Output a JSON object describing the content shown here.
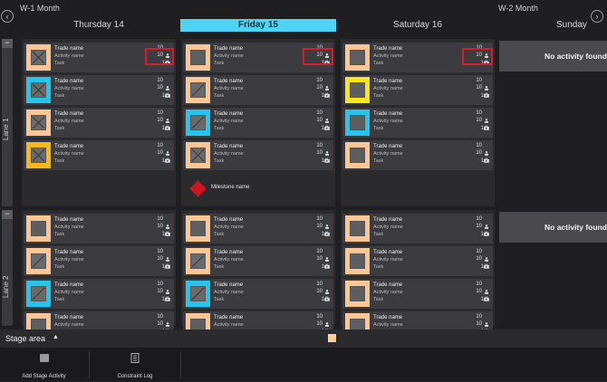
{
  "header": {
    "week_left": "W-1  Month",
    "week_right": "W-2  Month",
    "days": [
      {
        "label": "Thursday  14",
        "active": false
      },
      {
        "label": "Friday  15",
        "active": true
      },
      {
        "label": "Saturday  16",
        "active": false
      },
      {
        "label": "Sunday",
        "active": false
      }
    ]
  },
  "lanes": [
    {
      "label": "Lane 1",
      "collapse": "−"
    },
    {
      "label": "Lane 2",
      "collapse": "−"
    }
  ],
  "card_text": {
    "trade": "Trade name",
    "activity": "Activity name",
    "task": "Task",
    "people": "10",
    "camera": "10",
    "ratio": "1/1"
  },
  "colors": {
    "peach": "#fdc694",
    "cyan": "#25c6ee",
    "yellow": "#f8e51b",
    "amber": "#f6b81a",
    "highlight": "#d61d2d",
    "milestone": "#d0151f"
  },
  "lane1": {
    "thursday": [
      {
        "color": "peach",
        "icon": "x"
      },
      {
        "color": "cyan",
        "icon": "x"
      },
      {
        "color": "peach",
        "icon": "x"
      },
      {
        "color": "amber",
        "icon": "x"
      }
    ],
    "friday": [
      {
        "color": "peach",
        "icon": "square"
      },
      {
        "color": "peach",
        "icon": "slash"
      },
      {
        "color": "cyan",
        "icon": "slash"
      },
      {
        "color": "peach",
        "icon": "x"
      }
    ],
    "saturday": [
      {
        "color": "peach",
        "icon": "square"
      },
      {
        "color": "yellow",
        "icon": "square"
      },
      {
        "color": "cyan",
        "icon": "square"
      },
      {
        "color": "peach",
        "icon": "square"
      }
    ]
  },
  "lane2": {
    "thursday": [
      {
        "color": "peach",
        "icon": "square"
      },
      {
        "color": "peach",
        "icon": "slash"
      },
      {
        "color": "cyan",
        "icon": "slash"
      },
      {
        "color": "peach",
        "icon": "square"
      }
    ],
    "friday": [
      {
        "color": "peach",
        "icon": "square"
      },
      {
        "color": "peach",
        "icon": "slash"
      },
      {
        "color": "cyan",
        "icon": "slash"
      },
      {
        "color": "peach",
        "icon": "square"
      }
    ],
    "saturday": [
      {
        "color": "peach",
        "icon": "square"
      },
      {
        "color": "peach",
        "icon": "square"
      },
      {
        "color": "peach",
        "icon": "square"
      },
      {
        "color": "peach",
        "icon": "square"
      }
    ]
  },
  "no_activity": "No activity found",
  "milestone": {
    "label": "Milestone  name"
  },
  "stage": {
    "label": "Stage area",
    "toggle": "▲"
  },
  "toolbar": {
    "add_stage": "Add  Stage Activity",
    "constraint_log": "Constraint Log"
  },
  "nav": {
    "prev": "‹",
    "next": "›"
  }
}
